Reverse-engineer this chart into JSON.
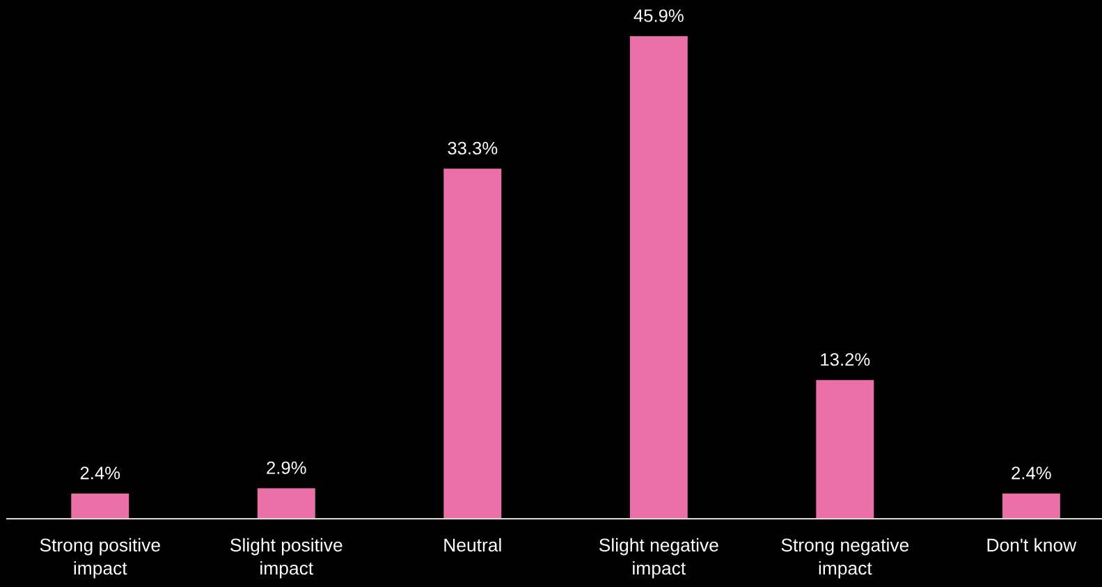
{
  "chart_data": {
    "type": "bar",
    "categories": [
      "Strong positive\nimpact",
      "Slight positive\nimpact",
      "Neutral",
      "Slight negative\nimpact",
      "Strong negative\nimpact",
      "Don't know"
    ],
    "values": [
      2.4,
      2.9,
      33.3,
      45.9,
      13.2,
      2.4
    ],
    "value_labels": [
      "2.4%",
      "2.9%",
      "33.3%",
      "45.9%",
      "13.2%",
      "2.4%"
    ],
    "color": "#ec70a8",
    "tick_labels": "x",
    "grid": false,
    "legend": false
  }
}
